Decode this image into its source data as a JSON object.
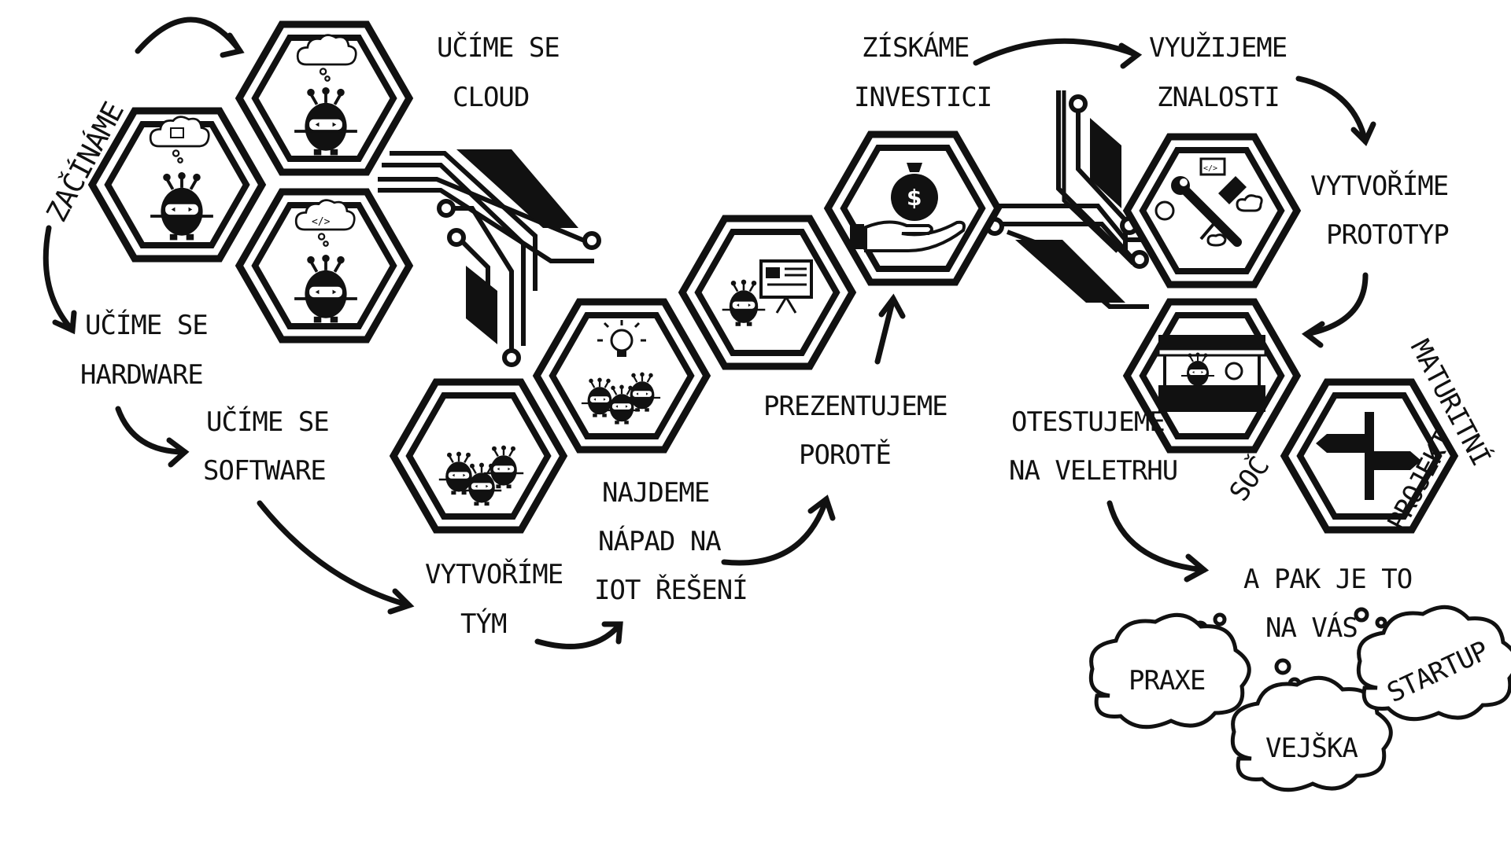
{
  "title": "ZAČÍNÁME",
  "labels": {
    "ucime_hardware": [
      "UČÍME SE",
      "HARDWARE"
    ],
    "ucime_cloud": [
      "UČÍME SE",
      "CLOUD"
    ],
    "ucime_software": [
      "UČÍME SE",
      "SOFTWARE"
    ],
    "vytvorime_tym": [
      "VYTVOŘÍME",
      "TÝM"
    ],
    "najdeme_napad": [
      "NAJDEME",
      "NÁPAD NA",
      "IOT ŘEŠENÍ"
    ],
    "prezentujeme": [
      "PREZENTUJEME",
      "POROTĚ"
    ],
    "ziskame": [
      "ZÍSKÁME",
      "INVESTICI"
    ],
    "vyuzijeme": [
      "VYUŽIJEME",
      "ZNALOSTI"
    ],
    "vytvorime_prototyp": [
      "VYTVOŘÍME",
      "PROTOTYP"
    ],
    "otestujeme": [
      "OTESTUJEME",
      "NA VELETRHU"
    ],
    "maturitni": "MATURITNÍ",
    "projekt": "PROJEKT",
    "soc": "SOČ",
    "a_pak": [
      "A PAK JE TO",
      "NA VÁS"
    ]
  },
  "clouds": [
    "PRAXE",
    "VEJŠKA",
    "STARTUP"
  ],
  "icons": {
    "bot_cloud_chip": "robot-thinking-chip-icon",
    "bot_cloud": "robot-thinking-cloud-icon",
    "bot_code": "robot-thinking-code-icon",
    "team": "robot-team-icon",
    "idea": "robot-team-idea-icon",
    "presentation": "robot-presentation-icon",
    "money": "money-bag-hand-icon",
    "tools": "tools-icon",
    "stand": "market-stand-icon",
    "signpost": "signpost-icon"
  },
  "colors": {
    "ink": "#111111",
    "paper": "#ffffff"
  }
}
